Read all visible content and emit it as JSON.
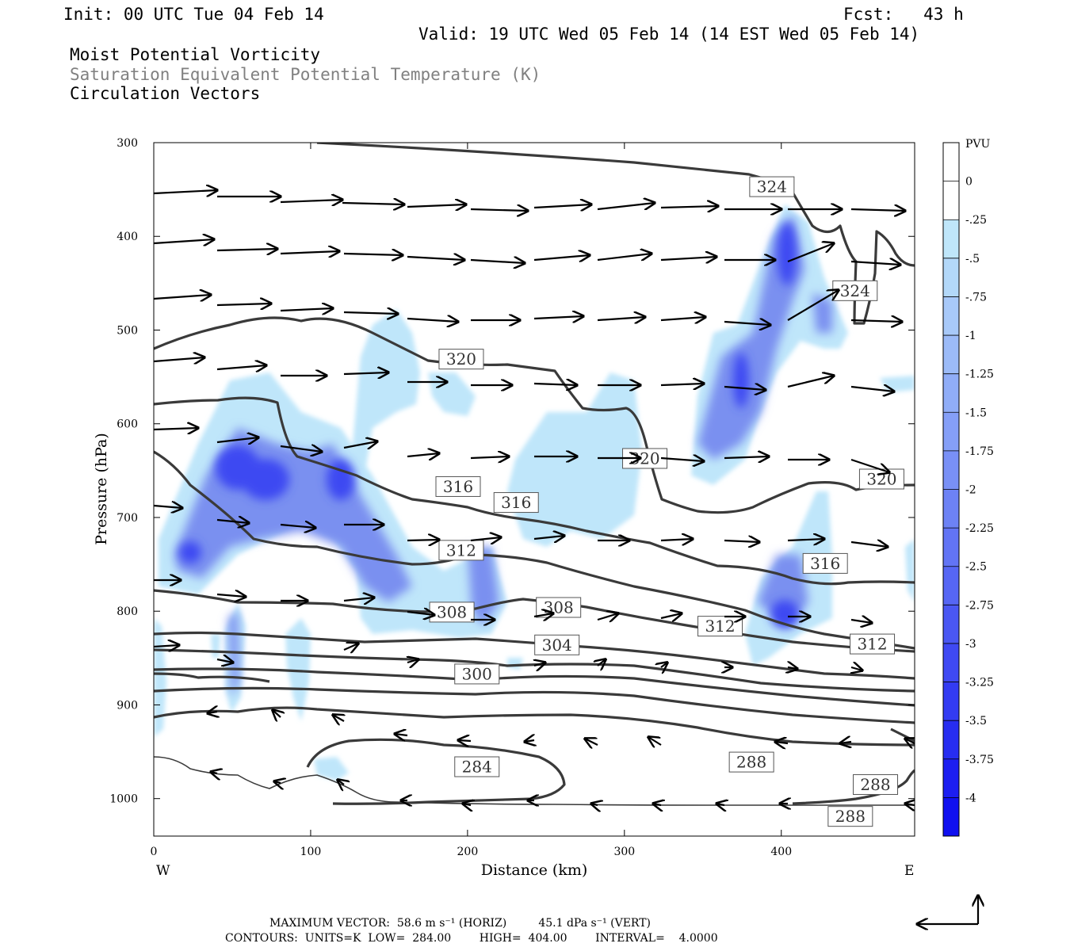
{
  "header": {
    "init": "Init: 00 UTC Tue 04 Feb 14",
    "fcst": "Fcst:   43 h",
    "valid": "Valid: 19 UTC Wed 05 Feb 14 (14 EST Wed 05 Feb 14)",
    "field1": "Moist Potential Vorticity",
    "field2": "Saturation Equivalent Potential Temperature (K)",
    "field3": "Circulation Vectors"
  },
  "footer": {
    "max_vector": "MAXIMUM VECTOR:  58.6 m s⁻¹ (HORIZ)         45.1 dPa s⁻¹ (VERT)",
    "contours": "CONTOURS:  UNITS=K  LOW=  284.00        HIGH=  404.00        INTERVAL=    4.0000"
  },
  "colors": {
    "frame": "#000000",
    "contour": "#3a3a3a",
    "shade_light": "#bfe6fa",
    "shade_dark": "#1010f0"
  },
  "chart_data": {
    "type": "heatmap",
    "xlabel": "Distance (km)",
    "ylabel": "Pressure (hPa)",
    "xlim": [
      0,
      485
    ],
    "ylim": [
      1040,
      300
    ],
    "x_ticks": [
      "0",
      "100",
      "200",
      "300",
      "400"
    ],
    "y_ticks": [
      "300",
      "400",
      "500",
      "600",
      "700",
      "800",
      "900",
      "1000"
    ],
    "x_end_labels": {
      "left": "W",
      "right": "E"
    },
    "colorbar": {
      "unit": "PVU",
      "levels": [
        "0",
        "-.25",
        "-.5",
        "-.75",
        "-1",
        "-1.25",
        "-1.5",
        "-1.75",
        "-2",
        "-2.25",
        "-2.5",
        "-2.75",
        "-3",
        "-3.25",
        "-3.5",
        "-3.75",
        "-4"
      ]
    },
    "contour_labels": [
      {
        "text": "324",
        "x": 394,
        "p": 347
      },
      {
        "text": "324",
        "x": 447,
        "p": 458
      },
      {
        "text": "320",
        "x": 196,
        "p": 531
      },
      {
        "text": "320",
        "x": 313,
        "p": 637
      },
      {
        "text": "320",
        "x": 464,
        "p": 659
      },
      {
        "text": "316",
        "x": 194,
        "p": 667
      },
      {
        "text": "316",
        "x": 231,
        "p": 684
      },
      {
        "text": "316",
        "x": 428,
        "p": 749
      },
      {
        "text": "312",
        "x": 196,
        "p": 735
      },
      {
        "text": "312",
        "x": 361,
        "p": 816
      },
      {
        "text": "312",
        "x": 458,
        "p": 835
      },
      {
        "text": "308",
        "x": 190,
        "p": 801
      },
      {
        "text": "308",
        "x": 258,
        "p": 796
      },
      {
        "text": "304",
        "x": 257,
        "p": 836
      },
      {
        "text": "300",
        "x": 206,
        "p": 867
      },
      {
        "text": "284",
        "x": 206,
        "p": 966
      },
      {
        "text": "288",
        "x": 381,
        "p": 961
      },
      {
        "text": "288",
        "x": 460,
        "p": 985
      },
      {
        "text": "288",
        "x": 444,
        "p": 1019
      }
    ]
  }
}
